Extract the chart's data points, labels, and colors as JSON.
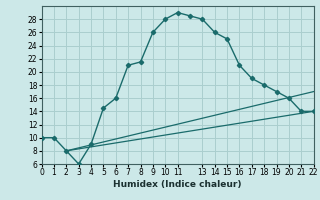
{
  "xlabel": "Humidex (Indice chaleur)",
  "bg_color": "#cce8e8",
  "grid_color": "#aacece",
  "line_color": "#1a6b6b",
  "curve1_x": [
    0,
    1,
    2,
    3,
    4,
    5,
    6,
    7,
    8,
    9,
    10,
    11,
    12,
    13,
    14,
    15,
    16,
    17,
    18,
    19,
    20,
    21,
    22
  ],
  "curve1_y": [
    10,
    10,
    8,
    6,
    9,
    14.5,
    16,
    21,
    21.5,
    26,
    28,
    29,
    28.5,
    28,
    26,
    25,
    21,
    19,
    18,
    17,
    16,
    14,
    14
  ],
  "line2_x": [
    2,
    22
  ],
  "line2_y": [
    8,
    14
  ],
  "line3_x": [
    2,
    22
  ],
  "line3_y": [
    8,
    17
  ],
  "xlim": [
    0,
    22
  ],
  "ylim": [
    6,
    30
  ],
  "yticks": [
    6,
    8,
    10,
    12,
    14,
    16,
    18,
    20,
    22,
    24,
    26,
    28
  ],
  "xticks": [
    0,
    1,
    2,
    3,
    4,
    5,
    6,
    7,
    8,
    9,
    10,
    11,
    13,
    14,
    15,
    16,
    17,
    18,
    19,
    20,
    21,
    22
  ],
  "xlabel_fontsize": 6.5,
  "tick_fontsize": 5.5
}
